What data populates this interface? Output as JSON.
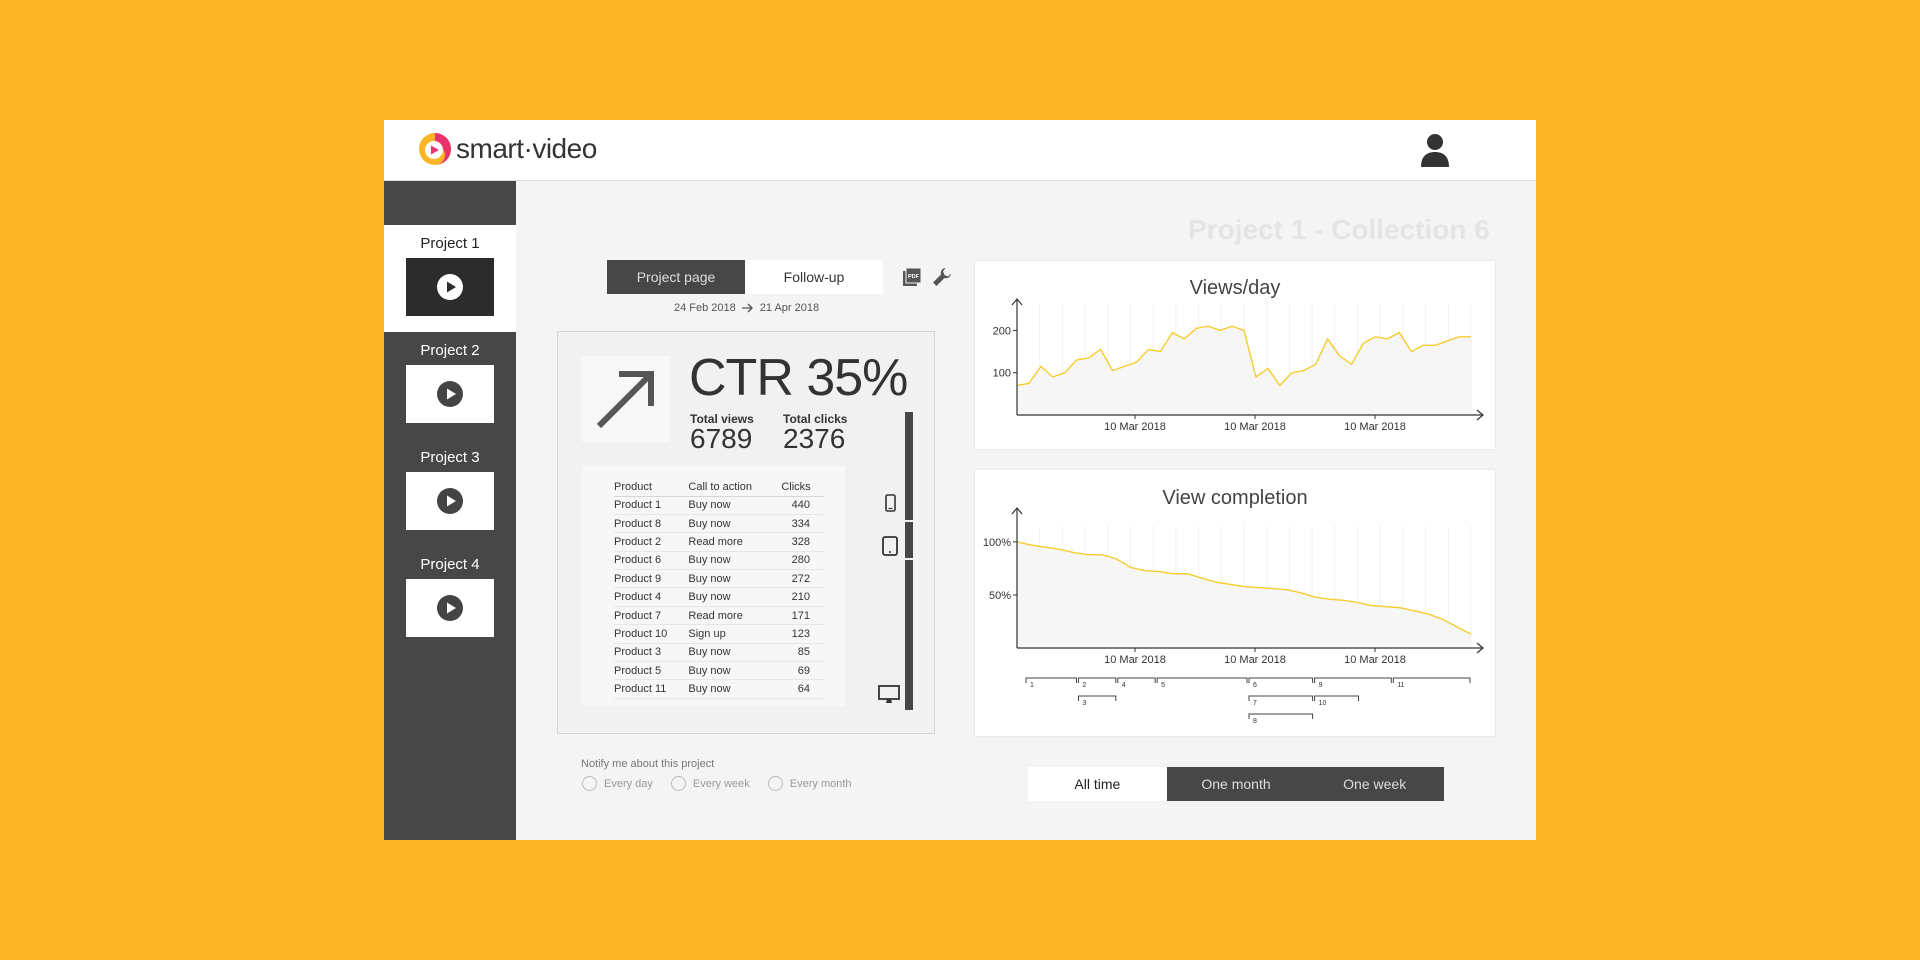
{
  "app": {
    "logo_text": "smart·video",
    "brand_colors": {
      "yellow": "#FDB526",
      "pink": "#E8336C"
    }
  },
  "header": {
    "user_icon": "user-icon"
  },
  "sidebar": {
    "projects": [
      {
        "label": "Project 1",
        "active": true
      },
      {
        "label": "Project 2",
        "active": false
      },
      {
        "label": "Project 3",
        "active": false
      },
      {
        "label": "Project 4",
        "active": false
      }
    ]
  },
  "main": {
    "collection_title": "Project 1 - Collection 6",
    "tabs": [
      {
        "label": "Project page",
        "active": true
      },
      {
        "label": "Follow-up",
        "active": false
      }
    ],
    "toolbar_icons": [
      "pdf-icon",
      "wrench-icon"
    ],
    "date_range": {
      "from": "24 Feb 2018",
      "to": "21 Apr 2018"
    },
    "stats": {
      "ctr_label": "CTR 35%",
      "total_views_label": "Total views",
      "total_views": "6789",
      "total_clicks_label": "Total clicks",
      "total_clicks": "2376"
    },
    "products_table": {
      "headers": [
        "Product",
        "Call to action",
        "Clicks"
      ],
      "rows": [
        [
          "Product 1",
          "Buy now",
          "440"
        ],
        [
          "Product 8",
          "Buy now",
          "334"
        ],
        [
          "Product 2",
          "Read more",
          "328"
        ],
        [
          "Product 6",
          "Buy now",
          "280"
        ],
        [
          "Product 9",
          "Buy now",
          "272"
        ],
        [
          "Product 4",
          "Buy now",
          "210"
        ],
        [
          "Product 7",
          "Read more",
          "171"
        ],
        [
          "Product 10",
          "Sign up",
          "123"
        ],
        [
          "Product 3",
          "Buy now",
          "85"
        ],
        [
          "Product 5",
          "Buy now",
          "69"
        ],
        [
          "Product 11",
          "Buy now",
          "64"
        ]
      ]
    },
    "devices": [
      "phone-icon",
      "tablet-icon",
      "desktop-icon"
    ],
    "notify": {
      "label": "Notify me about this project",
      "options": [
        "Every day",
        "Every week",
        "Every month"
      ]
    },
    "range_tabs": [
      {
        "label": "All time",
        "active": true
      },
      {
        "label": "One month",
        "active": false
      },
      {
        "label": "One week",
        "active": false
      }
    ]
  },
  "chart_data": [
    {
      "type": "line",
      "title": "Views/day",
      "x_tick_labels": [
        "10 Mar 2018",
        "10 Mar 2018",
        "10 Mar 2018"
      ],
      "y_ticks": [
        100,
        200
      ],
      "ylim": [
        0,
        265
      ],
      "line_color": "#F6CC2E",
      "grid": true,
      "series": [
        {
          "values": [
            70,
            75,
            115,
            90,
            100,
            130,
            135,
            155,
            105,
            115,
            125,
            155,
            150,
            195,
            180,
            205,
            210,
            200,
            210,
            200,
            90,
            110,
            70,
            100,
            105,
            120,
            180,
            140,
            120,
            170,
            185,
            180,
            195,
            150,
            165,
            165,
            175,
            185,
            185
          ]
        }
      ]
    },
    {
      "type": "line",
      "title": "View completion",
      "x_tick_labels": [
        "10 Mar 2018",
        "10 Mar 2018",
        "10 Mar 2018"
      ],
      "y_ticks": [
        "50%",
        "100%"
      ],
      "ylim": [
        0,
        115
      ],
      "line_color": "#F6CC2E",
      "grid": true,
      "series": [
        {
          "values": [
            100,
            97,
            95,
            93,
            90,
            88,
            88,
            84,
            76,
            73,
            72,
            70,
            70,
            66,
            62,
            60,
            58,
            57,
            56,
            55,
            52,
            48,
            46,
            45,
            43,
            40,
            39,
            38,
            35,
            32,
            27,
            20,
            13
          ]
        }
      ],
      "segments": [
        {
          "label": "1",
          "from": 0,
          "to": 4,
          "row": 0
        },
        {
          "label": "2",
          "from": 4,
          "to": 7,
          "row": 0
        },
        {
          "label": "3",
          "from": 4,
          "to": 7,
          "row": 1
        },
        {
          "label": "4",
          "from": 7,
          "to": 10,
          "row": 0
        },
        {
          "label": "5",
          "from": 10,
          "to": 17,
          "row": 0
        },
        {
          "label": "6",
          "from": 17,
          "to": 22,
          "row": 0
        },
        {
          "label": "7",
          "from": 17,
          "to": 22,
          "row": 1
        },
        {
          "label": "8",
          "from": 17,
          "to": 22,
          "row": 2
        },
        {
          "label": "9",
          "from": 22,
          "to": 28,
          "row": 0
        },
        {
          "label": "10",
          "from": 22,
          "to": 25.5,
          "row": 1
        },
        {
          "label": "11",
          "from": 28,
          "to": 34,
          "row": 0
        }
      ]
    }
  ]
}
